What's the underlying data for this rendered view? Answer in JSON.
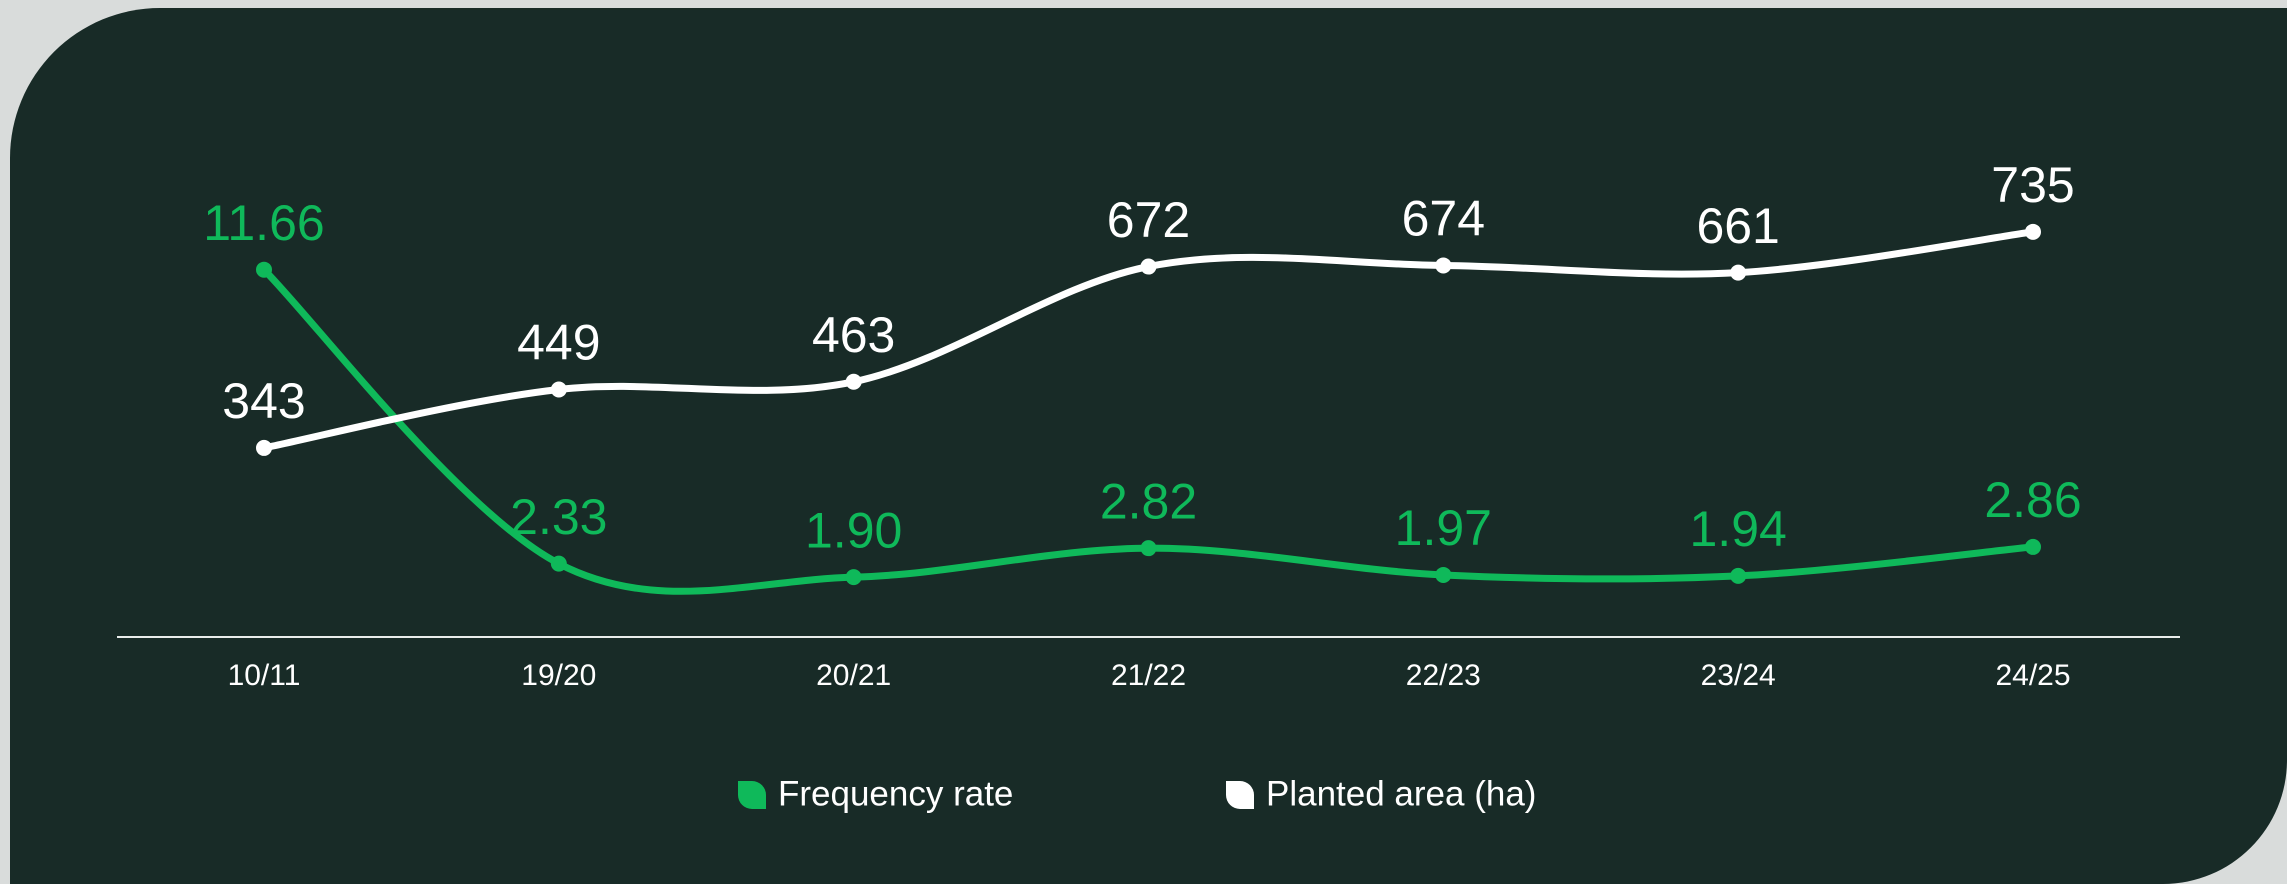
{
  "chart_data": {
    "type": "line",
    "categories": [
      "10/11",
      "19/20",
      "20/21",
      "21/22",
      "22/23",
      "23/24",
      "24/25"
    ],
    "series": [
      {
        "name": "Frequency rate",
        "color": "#0fb95a",
        "values": [
          11.66,
          2.33,
          1.9,
          2.82,
          1.97,
          1.94,
          2.86
        ],
        "value_labels": [
          "11.66",
          "2.33",
          "1.90",
          "2.82",
          "1.97",
          "1.94",
          "2.86"
        ]
      },
      {
        "name": "Planted area (ha)",
        "color": "#ffffff",
        "axis": "y2",
        "values": [
          343,
          449,
          463,
          672,
          674,
          661,
          735
        ]
      }
    ],
    "ylim": [
      0,
      14
    ],
    "y2lim": [
      0,
      800
    ],
    "legend": "bottom"
  }
}
